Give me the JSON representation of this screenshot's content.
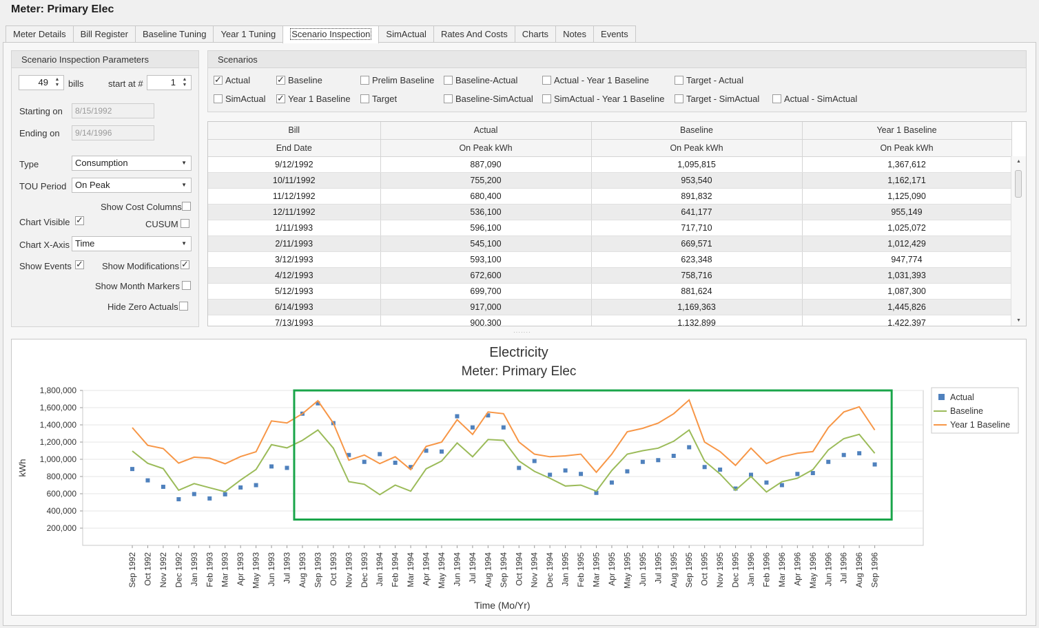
{
  "header": {
    "meter_title": "Meter:  Primary Elec"
  },
  "tabs": [
    {
      "label": "Meter Details"
    },
    {
      "label": "Bill Register"
    },
    {
      "label": "Baseline Tuning"
    },
    {
      "label": "Year 1 Tuning"
    },
    {
      "label": "Scenario Inspection",
      "active": true
    },
    {
      "label": "SimActual"
    },
    {
      "label": "Rates And Costs"
    },
    {
      "label": "Charts"
    },
    {
      "label": "Notes"
    },
    {
      "label": "Events"
    }
  ],
  "params": {
    "title": "Scenario Inspection Parameters",
    "bills_value": "49",
    "bills_label": "bills",
    "start_at_label": "start at #",
    "start_at_value": "1",
    "starting_on_label": "Starting on",
    "starting_on_value": "8/15/1992",
    "ending_on_label": "Ending on",
    "ending_on_value": "9/14/1996",
    "type_label": "Type",
    "type_value": "Consumption",
    "tou_label": "TOU Period",
    "tou_value": "On Peak",
    "show_cost_label": "Show Cost Columns",
    "show_cost_checked": false,
    "chart_visible_label": "Chart Visible",
    "chart_visible_checked": true,
    "cusum_label": "CUSUM",
    "cusum_checked": false,
    "chart_xaxis_label": "Chart X-Axis",
    "chart_xaxis_value": "Time",
    "show_events_label": "Show Events",
    "show_events_checked": true,
    "show_mods_label": "Show Modifications",
    "show_mods_checked": true,
    "show_month_label": "Show Month Markers",
    "show_month_checked": false,
    "hide_zero_label": "Hide Zero Actuals",
    "hide_zero_checked": false
  },
  "scenarios": {
    "title": "Scenarios",
    "items": [
      {
        "label": "Actual",
        "checked": true
      },
      {
        "label": "Baseline",
        "checked": true
      },
      {
        "label": "Prelim Baseline",
        "checked": false
      },
      {
        "label": "Baseline-Actual",
        "checked": false
      },
      {
        "label": "Actual - Year 1 Baseline",
        "checked": false
      },
      {
        "label": "Target - Actual",
        "checked": false
      },
      {
        "label": "SimActual",
        "checked": false
      },
      {
        "label": "Year 1 Baseline",
        "checked": true
      },
      {
        "label": "Target",
        "checked": false
      },
      {
        "label": "Baseline-SimActual",
        "checked": false
      },
      {
        "label": "SimActual - Year 1 Baseline",
        "checked": false
      },
      {
        "label": "Target - SimActual",
        "checked": false
      },
      {
        "label": "Actual - SimActual",
        "checked": false
      }
    ]
  },
  "grid": {
    "headers_top": [
      "Bill",
      "Actual",
      "Baseline",
      "Year 1 Baseline"
    ],
    "headers_sub": [
      "End Date",
      "On Peak kWh",
      "On Peak kWh",
      "On Peak kWh"
    ],
    "rows": [
      [
        "9/12/1992",
        "887,090",
        "1,095,815",
        "1,367,612"
      ],
      [
        "10/11/1992",
        "755,200",
        "953,540",
        "1,162,171"
      ],
      [
        "11/12/1992",
        "680,400",
        "891,832",
        "1,125,090"
      ],
      [
        "12/11/1992",
        "536,100",
        "641,177",
        "955,149"
      ],
      [
        "1/11/1993",
        "596,100",
        "717,710",
        "1,025,072"
      ],
      [
        "2/11/1993",
        "545,100",
        "669,571",
        "1,012,429"
      ],
      [
        "3/12/1993",
        "593,100",
        "623,348",
        "947,774"
      ],
      [
        "4/12/1993",
        "672,600",
        "758,716",
        "1,031,393"
      ],
      [
        "5/12/1993",
        "699,700",
        "881,624",
        "1,087,300"
      ],
      [
        "6/14/1993",
        "917,000",
        "1,169,363",
        "1,445,826"
      ],
      [
        "7/13/1993",
        "900,300",
        "1,132,899",
        "1,422,397"
      ]
    ]
  },
  "colors": {
    "actual": "#4f81bd",
    "baseline": "#9bbb59",
    "year1": "#f79646",
    "highlight": "#1aa54a"
  },
  "chart_data": {
    "type": "line",
    "title": "Electricity",
    "subtitle": "Meter: Primary Elec",
    "xlabel": "Time (Mo/Yr)",
    "ylabel": "kWh",
    "ylim": [
      0,
      1800000
    ],
    "yticks": [
      "200,000",
      "400,000",
      "600,000",
      "800,000",
      "1,000,000",
      "1,200,000",
      "1,400,000",
      "1,600,000",
      "1,800,000"
    ],
    "legend_position": "right",
    "categories": [
      "Sep 1992",
      "Oct 1992",
      "Nov 1992",
      "Dec 1992",
      "Jan 1993",
      "Feb 1993",
      "Mar 1993",
      "Apr 1993",
      "May 1993",
      "Jun 1993",
      "Jul 1993",
      "Aug 1993",
      "Sep 1993",
      "Oct 1993",
      "Nov 1993",
      "Dec 1993",
      "Jan 1994",
      "Feb 1994",
      "Mar 1994",
      "Apr 1994",
      "May 1994",
      "Jun 1994",
      "Jul 1994",
      "Aug 1994",
      "Sep 1994",
      "Oct 1994",
      "Nov 1994",
      "Dec 1994",
      "Jan 1995",
      "Feb 1995",
      "Mar 1995",
      "Apr 1995",
      "May 1995",
      "Jun 1995",
      "Jul 1995",
      "Aug 1995",
      "Sep 1995",
      "Oct 1995",
      "Nov 1995",
      "Dec 1995",
      "Jan 1996",
      "Feb 1996",
      "Mar 1996",
      "Apr 1996",
      "May 1996",
      "Jun 1996",
      "Jul 1996",
      "Aug 1996",
      "Sep 1996"
    ],
    "series": [
      {
        "name": "Actual",
        "style": "markers",
        "values": [
          887090,
          755200,
          680400,
          536100,
          596100,
          545100,
          593100,
          672600,
          699700,
          917000,
          900300,
          1530000,
          1650000,
          1420000,
          1050000,
          970000,
          1060000,
          960000,
          910000,
          1100000,
          1090000,
          1500000,
          1370000,
          1510000,
          1370000,
          900000,
          980000,
          820000,
          870000,
          830000,
          610000,
          730000,
          860000,
          970000,
          990000,
          1040000,
          1140000,
          910000,
          880000,
          660000,
          820000,
          730000,
          700000,
          830000,
          840000,
          970000,
          1050000,
          1070000,
          940000
        ]
      },
      {
        "name": "Baseline",
        "style": "line",
        "values": [
          1095815,
          953540,
          891832,
          641177,
          717710,
          669571,
          623348,
          758716,
          881624,
          1169363,
          1132899,
          1220000,
          1340000,
          1130000,
          740000,
          710000,
          590000,
          700000,
          630000,
          890000,
          980000,
          1190000,
          1030000,
          1230000,
          1220000,
          980000,
          860000,
          780000,
          690000,
          700000,
          630000,
          870000,
          1060000,
          1100000,
          1130000,
          1210000,
          1340000,
          980000,
          830000,
          640000,
          800000,
          620000,
          740000,
          780000,
          880000,
          1110000,
          1240000,
          1290000,
          1070000
        ]
      },
      {
        "name": "Year 1 Baseline",
        "style": "line",
        "values": [
          1367612,
          1162171,
          1125090,
          955149,
          1025072,
          1012429,
          947774,
          1031393,
          1087300,
          1445826,
          1422397,
          1530000,
          1680000,
          1420000,
          990000,
          1050000,
          950000,
          1030000,
          880000,
          1150000,
          1200000,
          1460000,
          1290000,
          1550000,
          1530000,
          1200000,
          1060000,
          1030000,
          1040000,
          1060000,
          850000,
          1060000,
          1320000,
          1360000,
          1420000,
          1530000,
          1690000,
          1200000,
          1090000,
          930000,
          1130000,
          950000,
          1030000,
          1070000,
          1090000,
          1370000,
          1550000,
          1610000,
          1340000
        ]
      }
    ],
    "highlight_box": {
      "x_start": "Aug 1993",
      "x_end": "Aug 1996",
      "y_top": 1800000,
      "y_bottom": 300000
    }
  }
}
